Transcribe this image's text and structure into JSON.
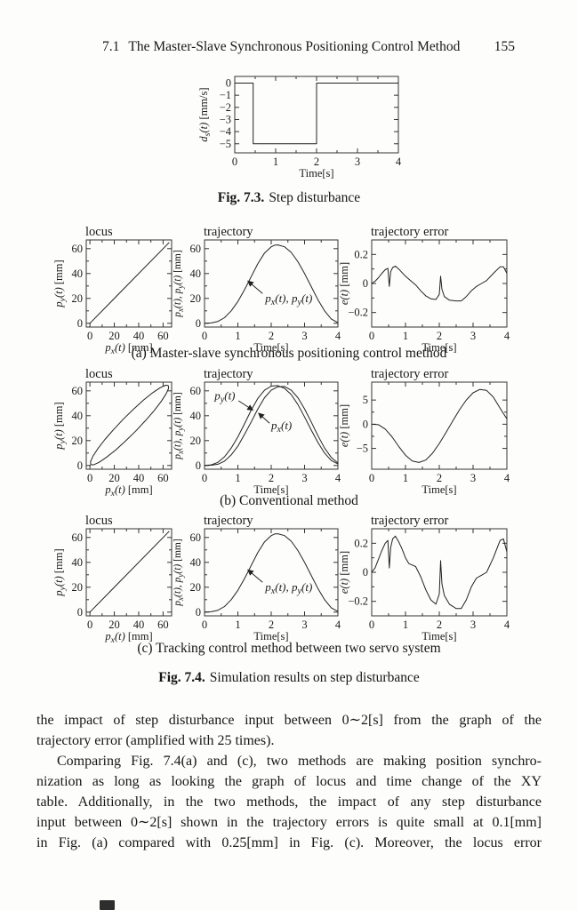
{
  "page": {
    "header": {
      "section": "7.1",
      "title": "The Master-Slave Synchronous Positioning Control Method",
      "page_number": "155"
    },
    "fig73_caption": {
      "label": "Fig. 7.3.",
      "text": "Step disturbance"
    },
    "fig74_caption": {
      "label": "Fig. 7.4.",
      "text": "Simulation results on step disturbance"
    },
    "subcaptions": [
      "(a) Master-slave synchronous positioning control method",
      "(b) Conventional method",
      "(c) Tracking control method between two servo system"
    ],
    "body_lines": [
      "the impact of step disturbance input between 0∼2[s] from the graph of the",
      "trajectory error (amplified with 25 times).",
      "Comparing Fig. 7.4(a) and (c), two methods are making position synchro-",
      "nization as long as looking the graph of locus and time change of the XY",
      "table. Additionally, in the two methods, the impact of any step disturbance",
      "input between 0∼2[s] shown in the trajectory errors is quite small at 0.1[mm]",
      "in Fig. (a) compared with 0.25[mm] in Fig. (c). Moreover, the locus error"
    ]
  },
  "chart_data": [
    {
      "id": "fig73-step-disturbance",
      "type": "line",
      "title": "",
      "xlabel": "Time[s]",
      "ylabel": "d_s(t) [mm/s]",
      "xlim": [
        0,
        4
      ],
      "ylim": [
        -5.75,
        0.55
      ],
      "xticks": {
        "values": [
          0,
          1,
          2,
          3,
          4
        ],
        "labels": [
          "0",
          "1",
          "2",
          "3",
          "4"
        ]
      },
      "yticks": {
        "values": [
          0,
          -1,
          -2,
          -3,
          -4,
          -5
        ],
        "labels": [
          "0",
          "−1",
          "−2",
          "−3",
          "−4",
          "−5"
        ]
      },
      "xminor": true,
      "yminor": false,
      "series": [
        {
          "name": "d_s(t)",
          "x": [
            0,
            0.45,
            0.45,
            2,
            2,
            4
          ],
          "y": [
            0,
            0,
            -5,
            -5,
            0,
            0
          ]
        }
      ],
      "annotations": []
    },
    {
      "id": "a-locus",
      "type": "line",
      "title": "locus",
      "xlabel": "p_x(t) [mm]",
      "ylabel": "p_y(t) [mm]",
      "xlim": [
        -3,
        67
      ],
      "ylim": [
        -3,
        67
      ],
      "xticks": {
        "values": [
          0,
          20,
          40,
          60
        ],
        "labels": [
          "0",
          "20",
          "40",
          "60"
        ]
      },
      "yticks": {
        "values": [
          0,
          20,
          40,
          60
        ],
        "labels": [
          "0",
          "20",
          "40",
          "60"
        ]
      },
      "xminor": true,
      "yminor": true,
      "series": [
        {
          "name": "locus",
          "x": [
            0,
            65
          ],
          "y": [
            0,
            65
          ]
        }
      ],
      "annotations": []
    },
    {
      "id": "a-trajectory",
      "type": "line",
      "title": "trajectory",
      "xlabel": "Time[s]",
      "ylabel": "p_x(t), p_y(t) [mm]",
      "xlim": [
        0,
        4
      ],
      "ylim": [
        -3,
        67
      ],
      "xticks": {
        "values": [
          0,
          1,
          2,
          3,
          4
        ],
        "labels": [
          "0",
          "1",
          "2",
          "3",
          "4"
        ]
      },
      "yticks": {
        "values": [
          0,
          20,
          40,
          60
        ],
        "labels": [
          "0",
          "20",
          "40",
          "60"
        ]
      },
      "xminor": true,
      "yminor": true,
      "series": [
        {
          "name": "p_x(t), p_y(t)",
          "x": [
            0,
            0.2,
            0.4,
            0.6,
            0.8,
            1,
            1.2,
            1.4,
            1.6,
            1.8,
            2,
            2.1,
            2.2,
            2.4,
            2.6,
            2.8,
            3,
            3.2,
            3.4,
            3.6,
            3.8,
            4
          ],
          "y": [
            0,
            0.3,
            1.5,
            4.5,
            10,
            17.5,
            27,
            37.5,
            48,
            56.5,
            61.5,
            62.8,
            63,
            61.5,
            57,
            49.5,
            40,
            29.5,
            19,
            10,
            3.5,
            0.5
          ]
        }
      ],
      "annotations": [
        {
          "text": "p_x(t), p_y(t)",
          "x": 1.82,
          "y": 17,
          "arrow": {
            "x1": 1.74,
            "y1": 24,
            "x2": 1.3,
            "y2": 34
          }
        }
      ]
    },
    {
      "id": "a-trajectory-error",
      "type": "line",
      "title": "trajectory error",
      "xlabel": "Time[s]",
      "ylabel": "e(t) [mm]",
      "xlim": [
        0,
        4
      ],
      "ylim": [
        -0.3,
        0.3
      ],
      "xticks": {
        "values": [
          0,
          1,
          2,
          3,
          4
        ],
        "labels": [
          "0",
          "1",
          "2",
          "3",
          "4"
        ]
      },
      "yticks": {
        "values": [
          0.2,
          0,
          -0.2
        ],
        "labels": [
          "0.2",
          "0",
          "−0.2"
        ]
      },
      "xminor": true,
      "yminor": true,
      "series": [
        {
          "name": "e(t)",
          "x": [
            0,
            0.1,
            0.2,
            0.3,
            0.4,
            0.48,
            0.52,
            0.56,
            0.62,
            0.7,
            0.8,
            0.9,
            1,
            1.1,
            1.2,
            1.3,
            1.45,
            1.6,
            1.75,
            1.9,
            2,
            2.04,
            2.08,
            2.15,
            2.3,
            2.5,
            2.65,
            2.8,
            2.95,
            3.1,
            3.25,
            3.4,
            3.6,
            3.8,
            3.9,
            4
          ],
          "y": [
            0,
            0.015,
            0.04,
            0.07,
            0.095,
            0.105,
            -0.02,
            0.08,
            0.11,
            0.12,
            0.1,
            0.075,
            0.05,
            0.03,
            0.01,
            -0.01,
            -0.05,
            -0.085,
            -0.105,
            -0.11,
            -0.075,
            0.05,
            -0.04,
            -0.09,
            -0.115,
            -0.12,
            -0.12,
            -0.09,
            -0.05,
            -0.02,
            0,
            0.02,
            0.07,
            0.115,
            0.115,
            0.07
          ]
        }
      ],
      "annotations": []
    },
    {
      "id": "b-locus",
      "type": "line",
      "title": "locus",
      "xlabel": "p_x(t) [mm]",
      "ylabel": "p_y(t) [mm]",
      "xlim": [
        -3,
        67
      ],
      "ylim": [
        -3,
        67
      ],
      "xticks": {
        "values": [
          0,
          20,
          40,
          60
        ],
        "labels": [
          "0",
          "20",
          "40",
          "60"
        ]
      },
      "yticks": {
        "values": [
          0,
          20,
          40,
          60
        ],
        "labels": [
          "0",
          "20",
          "40",
          "60"
        ]
      },
      "xminor": true,
      "yminor": true,
      "series": [
        {
          "name": "locus-ellipse",
          "x": [
            64.3,
            62,
            57.6,
            51.5,
            44.1,
            36,
            27.6,
            19.5,
            12.3,
            6.5,
            2.5,
            0.5,
            0.7,
            3,
            7.4,
            13.5,
            20.9,
            29,
            37.5,
            45.5,
            52.7,
            58.5,
            62.5,
            64.5,
            64.3
          ],
          "y": [
            64.3,
            64.5,
            62.5,
            58.5,
            52.7,
            45.5,
            37.5,
            29,
            20.9,
            13.5,
            7.4,
            3,
            0.7,
            0.5,
            2.5,
            6.5,
            12.3,
            19.5,
            27.6,
            36,
            44.1,
            51.5,
            57.6,
            62,
            64.3
          ]
        }
      ],
      "annotations": []
    },
    {
      "id": "b-trajectory",
      "type": "line",
      "title": "trajectory",
      "xlabel": "Time[s]",
      "ylabel": "p_x(t), p_y(t) [mm]",
      "xlim": [
        0,
        4
      ],
      "ylim": [
        -3,
        67
      ],
      "xticks": {
        "values": [
          0,
          1,
          2,
          3,
          4
        ],
        "labels": [
          "0",
          "1",
          "2",
          "3",
          "4"
        ]
      },
      "yticks": {
        "values": [
          0,
          20,
          40,
          60
        ],
        "labels": [
          "0",
          "20",
          "40",
          "60"
        ]
      },
      "xminor": true,
      "yminor": true,
      "series": [
        {
          "name": "p_y(t)",
          "x": [
            0,
            0.2,
            0.4,
            0.6,
            0.8,
            1,
            1.2,
            1.4,
            1.6,
            1.8,
            2,
            2.2,
            2.4,
            2.6,
            2.8,
            3,
            3.2,
            3.4,
            3.6,
            3.8,
            4
          ],
          "y": [
            0,
            0.5,
            2.5,
            7,
            14,
            23,
            33.5,
            44.5,
            54,
            60.5,
            63.8,
            64.2,
            62,
            57,
            49,
            39,
            28.5,
            18.5,
            10,
            4,
            1.2
          ]
        },
        {
          "name": "p_x(t)",
          "x": [
            0,
            0.2,
            0.4,
            0.6,
            0.8,
            1,
            1.2,
            1.4,
            1.6,
            1.8,
            2,
            2.2,
            2.4,
            2.6,
            2.8,
            3,
            3.2,
            3.4,
            3.6,
            3.8,
            4
          ],
          "y": [
            0,
            0.2,
            1,
            3.5,
            8.5,
            15.5,
            25,
            35,
            45.5,
            54.5,
            60.5,
            63.3,
            63.5,
            60.5,
            54.5,
            45.5,
            35,
            24,
            14,
            6.5,
            2
          ]
        }
      ],
      "annotations": [
        {
          "text": "p_y(t)",
          "x": 0.3,
          "y": 53,
          "arrow": {
            "x1": 1.02,
            "y1": 52,
            "x2": 1.45,
            "y2": 44.5
          }
        },
        {
          "text": "p_x(t)",
          "x": 2.0,
          "y": 29,
          "arrow": {
            "x1": 1.95,
            "y1": 34,
            "x2": 1.62,
            "y2": 42
          }
        }
      ]
    },
    {
      "id": "b-trajectory-error",
      "type": "line",
      "title": "trajectory error",
      "xlabel": "Time[s]",
      "ylabel": "e(t) [mm]",
      "xlim": [
        0,
        4
      ],
      "ylim": [
        -9.3,
        8.7
      ],
      "xticks": {
        "values": [
          0,
          1,
          2,
          3,
          4
        ],
        "labels": [
          "0",
          "1",
          "2",
          "3",
          "4"
        ]
      },
      "yticks": {
        "values": [
          5,
          0,
          -5
        ],
        "labels": [
          "5",
          "0",
          "−5"
        ]
      },
      "xminor": true,
      "yminor": true,
      "series": [
        {
          "name": "e(t)",
          "x": [
            0,
            0.2,
            0.4,
            0.6,
            0.8,
            1,
            1.2,
            1.4,
            1.6,
            1.8,
            2,
            2.2,
            2.4,
            2.6,
            2.8,
            3,
            3.2,
            3.4,
            3.6,
            3.8,
            4
          ],
          "y": [
            0,
            -0.1,
            -1,
            -2.6,
            -4.6,
            -6.4,
            -7.6,
            -7.9,
            -7.4,
            -6,
            -4,
            -1.7,
            0.7,
            3,
            5,
            6.5,
            7.2,
            7,
            5.6,
            3.3,
            1.1
          ]
        }
      ],
      "annotations": []
    },
    {
      "id": "c-locus",
      "type": "line",
      "title": "locus",
      "xlabel": "p_x(t) [mm]",
      "ylabel": "p_y(t) [mm]",
      "xlim": [
        -3,
        67
      ],
      "ylim": [
        -3,
        67
      ],
      "xticks": {
        "values": [
          0,
          20,
          40,
          60
        ],
        "labels": [
          "0",
          "20",
          "40",
          "60"
        ]
      },
      "yticks": {
        "values": [
          0,
          20,
          40,
          60
        ],
        "labels": [
          "0",
          "20",
          "40",
          "60"
        ]
      },
      "xminor": true,
      "yminor": true,
      "series": [
        {
          "name": "locus",
          "x": [
            0,
            65
          ],
          "y": [
            0,
            65
          ]
        }
      ],
      "annotations": []
    },
    {
      "id": "c-trajectory",
      "type": "line",
      "title": "trajectory",
      "xlabel": "Time[s]",
      "ylabel": "p_x(t), p_y(t) [mm]",
      "xlim": [
        0,
        4
      ],
      "ylim": [
        -3,
        67
      ],
      "xticks": {
        "values": [
          0,
          1,
          2,
          3,
          4
        ],
        "labels": [
          "0",
          "1",
          "2",
          "3",
          "4"
        ]
      },
      "yticks": {
        "values": [
          0,
          20,
          40,
          60
        ],
        "labels": [
          "0",
          "20",
          "40",
          "60"
        ]
      },
      "xminor": true,
      "yminor": true,
      "series": [
        {
          "name": "p_x(t), p_y(t)",
          "x": [
            0,
            0.2,
            0.4,
            0.6,
            0.8,
            1,
            1.2,
            1.4,
            1.6,
            1.8,
            2,
            2.1,
            2.2,
            2.4,
            2.6,
            2.8,
            3,
            3.2,
            3.4,
            3.6,
            3.8,
            4
          ],
          "y": [
            0,
            0.3,
            1.5,
            4.5,
            10,
            17.5,
            27,
            37.5,
            48,
            56.5,
            61.5,
            62.8,
            63,
            61.5,
            57,
            49.5,
            40,
            29.5,
            19,
            10,
            3.5,
            0.5
          ]
        }
      ],
      "annotations": [
        {
          "text": "p_x(t), p_y(t)",
          "x": 1.82,
          "y": 17,
          "arrow": {
            "x1": 1.74,
            "y1": 24,
            "x2": 1.3,
            "y2": 34
          }
        }
      ]
    },
    {
      "id": "c-trajectory-error",
      "type": "line",
      "title": "trajectory error",
      "xlabel": "Time[s]",
      "ylabel": "e(t) [mm]",
      "xlim": [
        0,
        4
      ],
      "ylim": [
        -0.3,
        0.3
      ],
      "xticks": {
        "values": [
          0,
          1,
          2,
          3,
          4
        ],
        "labels": [
          "0",
          "1",
          "2",
          "3",
          "4"
        ]
      },
      "yticks": {
        "values": [
          0.2,
          0,
          -0.2
        ],
        "labels": [
          "0.2",
          "0",
          "−0.2"
        ]
      },
      "xminor": true,
      "yminor": true,
      "series": [
        {
          "name": "e(t)",
          "x": [
            0,
            0.1,
            0.2,
            0.3,
            0.4,
            0.48,
            0.52,
            0.56,
            0.62,
            0.7,
            0.8,
            0.9,
            1,
            1.1,
            1.2,
            1.3,
            1.45,
            1.6,
            1.75,
            1.9,
            2,
            2.04,
            2.08,
            2.15,
            2.3,
            2.5,
            2.65,
            2.8,
            2.95,
            3.1,
            3.25,
            3.4,
            3.6,
            3.8,
            3.9,
            4
          ],
          "y": [
            0,
            0.03,
            0.09,
            0.15,
            0.2,
            0.22,
            0.03,
            0.17,
            0.23,
            0.25,
            0.21,
            0.16,
            0.1,
            0.06,
            0.05,
            0.04,
            -0.03,
            -0.12,
            -0.19,
            -0.22,
            -0.15,
            0.08,
            -0.08,
            -0.16,
            -0.22,
            -0.25,
            -0.25,
            -0.19,
            -0.1,
            -0.04,
            -0.02,
            0,
            0.1,
            0.22,
            0.23,
            0.14
          ]
        }
      ],
      "annotations": []
    }
  ]
}
